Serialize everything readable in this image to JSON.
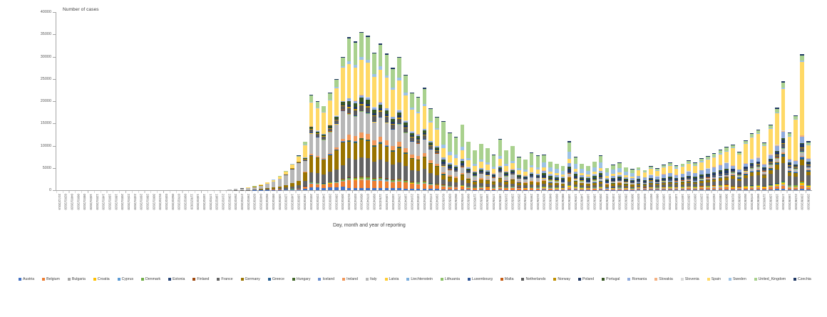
{
  "page": {
    "background": "#ffffff"
  },
  "chart_data": {
    "type": "bar",
    "variant": "stacked",
    "title": "Number of cases",
    "xlabel": "Day, month and year of reporting",
    "ylabel": "",
    "ylim": [
      0,
      40000
    ],
    "ytick_step": 5000,
    "ytick_labels": [
      "0",
      "5000",
      "10000",
      "15000",
      "20000",
      "25000",
      "30000",
      "35000",
      "40000"
    ],
    "grid": false,
    "legend_position": "bottom",
    "axis_color": "#a6a6a6",
    "tick_text_color": "#595959",
    "dates": [
      "31/12/2019",
      "02/01/2020",
      "04/01/2020",
      "06/01/2020",
      "08/01/2020",
      "10/01/2020",
      "12/01/2020",
      "14/01/2020",
      "16/01/2020",
      "18/01/2020",
      "20/01/2020",
      "22/01/2020",
      "24/01/2020",
      "26/01/2020",
      "28/01/2020",
      "30/01/2020",
      "01/02/2020",
      "03/02/2020",
      "05/02/2020",
      "07/02/2020",
      "09/02/2020",
      "11/02/2020",
      "13/02/2020",
      "15/02/2020",
      "17/02/2020",
      "19/02/2020",
      "21/02/2020",
      "23/02/2020",
      "25/02/2020",
      "27/02/2020",
      "29/02/2020",
      "02/03/2020",
      "04/03/2020",
      "06/03/2020",
      "08/03/2020",
      "10/03/2020",
      "12/03/2020",
      "14/03/2020",
      "16/03/2020",
      "18/03/2020",
      "20/03/2020",
      "22/03/2020",
      "24/03/2020",
      "26/03/2020",
      "28/03/2020",
      "30/03/2020",
      "01/04/2020",
      "03/04/2020",
      "05/04/2020",
      "07/04/2020",
      "09/04/2020",
      "11/04/2020",
      "13/04/2020",
      "15/04/2020",
      "17/04/2020",
      "19/04/2020",
      "21/04/2020",
      "23/04/2020",
      "25/04/2020",
      "27/04/2020",
      "29/04/2020",
      "01/05/2020",
      "03/05/2020",
      "05/05/2020",
      "07/05/2020",
      "09/05/2020",
      "11/05/2020",
      "13/05/2020",
      "15/05/2020",
      "17/05/2020",
      "19/05/2020",
      "21/05/2020",
      "23/05/2020",
      "25/05/2020",
      "27/05/2020",
      "29/05/2020",
      "31/05/2020",
      "02/06/2020",
      "04/06/2020",
      "06/06/2020",
      "08/06/2020",
      "10/06/2020",
      "12/06/2020",
      "14/06/2020",
      "16/06/2020",
      "18/06/2020",
      "20/06/2020",
      "22/06/2020",
      "24/06/2020",
      "26/06/2020",
      "28/06/2020",
      "30/06/2020",
      "02/07/2020",
      "04/07/2020",
      "06/07/2020",
      "08/07/2020",
      "10/07/2020",
      "12/07/2020",
      "14/07/2020",
      "16/07/2020",
      "18/07/2020",
      "20/07/2020",
      "22/07/2020",
      "24/07/2020",
      "26/07/2020",
      "28/07/2020",
      "30/07/2020",
      "01/08/2020",
      "03/08/2020",
      "05/08/2020",
      "07/08/2020",
      "09/08/2020",
      "11/08/2020",
      "13/08/2020",
      "15/08/2020",
      "17/08/2020",
      "19/08/2020",
      "21/08/2020",
      "23/08/2020",
      "25/08/2020"
    ],
    "totals": [
      0,
      0,
      0,
      0,
      0,
      0,
      0,
      0,
      0,
      0,
      0,
      0,
      0,
      0,
      0,
      0,
      0,
      0,
      0,
      0,
      0,
      0,
      0,
      0,
      20,
      30,
      60,
      150,
      300,
      450,
      600,
      900,
      1300,
      1800,
      2400,
      3200,
      4300,
      6000,
      7800,
      11000,
      21500,
      20000,
      19000,
      22000,
      25000,
      30000,
      34400,
      33500,
      35600,
      34800,
      31000,
      33000,
      30700,
      27500,
      30000,
      26000,
      22000,
      21000,
      23000,
      18500,
      16500,
      15500,
      13000,
      12000,
      14800,
      11000,
      9000,
      10500,
      9500,
      8000,
      11500,
      9000,
      10000,
      7500,
      7000,
      8500,
      7800,
      8000,
      6500,
      6000,
      5500,
      11000,
      7500,
      6000,
      5500,
      6500,
      7800,
      5000,
      5800,
      6200,
      5200,
      4800,
      5200,
      4600,
      5500,
      5000,
      5800,
      6200,
      5600,
      6000,
      6800,
      6200,
      7200,
      7800,
      8400,
      9200,
      9800,
      10200,
      8600,
      11200,
      12800,
      13600,
      10800,
      14800,
      18600,
      24500,
      13000,
      16800,
      30600,
      11000
    ],
    "countries": [
      {
        "name": "Austria",
        "color": "#4472C4"
      },
      {
        "name": "Belgium",
        "color": "#ED7D31"
      },
      {
        "name": "Bulgaria",
        "color": "#A5A5A5"
      },
      {
        "name": "Croatia",
        "color": "#FFC000"
      },
      {
        "name": "Cyprus",
        "color": "#5B9BD5"
      },
      {
        "name": "Denmark",
        "color": "#70AD47"
      },
      {
        "name": "Estonia",
        "color": "#264478"
      },
      {
        "name": "Finland",
        "color": "#9E480E"
      },
      {
        "name": "France",
        "color": "#636363"
      },
      {
        "name": "Germany",
        "color": "#997300"
      },
      {
        "name": "Greece",
        "color": "#255E91"
      },
      {
        "name": "Hungary",
        "color": "#43682B"
      },
      {
        "name": "Iceland",
        "color": "#698ED0"
      },
      {
        "name": "Ireland",
        "color": "#F1975A"
      },
      {
        "name": "Italy",
        "color": "#B7B7B7"
      },
      {
        "name": "Latvia",
        "color": "#FFCD33"
      },
      {
        "name": "Liechtenstein",
        "color": "#7CAFDD"
      },
      {
        "name": "Lithuania",
        "color": "#8CC168"
      },
      {
        "name": "Luxembourg",
        "color": "#2F5597"
      },
      {
        "name": "Malta",
        "color": "#C55A11"
      },
      {
        "name": "Netherlands",
        "color": "#5A5A5A"
      },
      {
        "name": "Norway",
        "color": "#BF8F00"
      },
      {
        "name": "Poland",
        "color": "#203864"
      },
      {
        "name": "Portugal",
        "color": "#375623"
      },
      {
        "name": "Romania",
        "color": "#8FAADC"
      },
      {
        "name": "Slovakia",
        "color": "#F4B183"
      },
      {
        "name": "Slovenia",
        "color": "#D9D9D9"
      },
      {
        "name": "Spain",
        "color": "#FFD966"
      },
      {
        "name": "Sweden",
        "color": "#9DC3E6"
      },
      {
        "name": "United_Kingdom",
        "color": "#A9D18E"
      },
      {
        "name": "Czechia",
        "color": "#1F3864"
      }
    ],
    "composition_phases": [
      {
        "from": 0,
        "to": 23,
        "weights": {
          "France": 50,
          "Germany": 20,
          "Italy": 15,
          "Spain": 5,
          "Sweden": 5,
          "United_Kingdom": 5
        }
      },
      {
        "from": 24,
        "to": 30,
        "weights": {
          "Italy": 78,
          "France": 6,
          "Germany": 5,
          "Spain": 4,
          "Austria": 1,
          "Sweden": 1,
          "United_Kingdom": 2,
          "Netherlands": 1,
          "Norway": 1,
          "Denmark": 1
        }
      },
      {
        "from": 31,
        "to": 38,
        "weights": {
          "Italy": 52,
          "Spain": 14,
          "Germany": 12,
          "France": 10,
          "Austria": 2,
          "Netherlands": 2,
          "United_Kingdom": 2,
          "Belgium": 1.5,
          "Norway": 1.5,
          "Sweden": 1,
          "Denmark": 1,
          "Czechia": 0.5,
          "Portugal": 0.5
        }
      },
      {
        "from": 39,
        "to": 45,
        "weights": {
          "Spain": 26,
          "Italy": 22,
          "Germany": 18,
          "France": 11,
          "United_Kingdom": 7,
          "Belgium": 4,
          "Austria": 3,
          "Netherlands": 3,
          "Portugal": 2,
          "Ireland": 1.5,
          "Sweden": 1,
          "Denmark": 0.8,
          "Norway": 0.8,
          "Czechia": 0.6,
          "Poland": 0.5,
          "Romania": 0.5,
          "Luxembourg": 0.5,
          "Greece": 0.3,
          "Finland": 0.3,
          "Iceland": 0.3,
          "Estonia": 0.2,
          "Croatia": 0.2,
          "Hungary": 0.2,
          "Bulgaria": 0.2,
          "Slovenia": 0.2,
          "Slovakia": 0.2,
          "Lithuania": 0.2,
          "Latvia": 0.1,
          "Malta": 0.1,
          "Cyprus": 0.1,
          "Liechtenstein": 0.05
        }
      },
      {
        "from": 46,
        "to": 60,
        "weights": {
          "Spain": 22,
          "United_Kingdom": 15,
          "Italy": 13,
          "France": 12,
          "Germany": 11,
          "Belgium": 5,
          "Ireland": 3.5,
          "Netherlands": 3.5,
          "Portugal": 2.5,
          "Sweden": 2,
          "Austria": 1.5,
          "Poland": 1.5,
          "Romania": 1.5,
          "Denmark": 1,
          "Czechia": 0.8,
          "Norway": 0.8,
          "Finland": 0.5,
          "Hungary": 0.5,
          "Greece": 0.4,
          "Luxembourg": 0.3,
          "Bulgaria": 0.3,
          "Lithuania": 0.3,
          "Estonia": 0.2,
          "Croatia": 0.2,
          "Slovenia": 0.2,
          "Slovakia": 0.2,
          "Iceland": 0.2,
          "Latvia": 0.1,
          "Malta": 0.1,
          "Cyprus": 0.1,
          "Liechtenstein": 0.05
        }
      },
      {
        "from": 61,
        "to": 76,
        "weights": {
          "United_Kingdom": 32,
          "Spain": 13,
          "Italy": 9,
          "Germany": 7,
          "France": 7,
          "Sweden": 5.5,
          "Belgium": 4,
          "Poland": 3.5,
          "Romania": 3,
          "Netherlands": 2.5,
          "Portugal": 2.5,
          "Ireland": 2,
          "Denmark": 1.2,
          "Bulgaria": 0.8,
          "Austria": 0.8,
          "Hungary": 0.8,
          "Czechia": 0.8,
          "Finland": 0.6,
          "Greece": 0.3,
          "Croatia": 0.3,
          "Norway": 0.3,
          "Lithuania": 0.3,
          "Slovakia": 0.2,
          "Estonia": 0.1,
          "Slovenia": 0.1,
          "Latvia": 0.1,
          "Luxembourg": 0.1,
          "Malta": 0.1,
          "Cyprus": 0.05,
          "Iceland": 0.05,
          "Liechtenstein": 0.02
        }
      },
      {
        "from": 77,
        "to": 91,
        "weights": {
          "United_Kingdom": 18,
          "Sweden": 14,
          "Spain": 8,
          "Germany": 7.5,
          "France": 7,
          "Poland": 6.5,
          "Romania": 6.5,
          "Italy": 5,
          "Portugal": 5,
          "Belgium": 2.5,
          "Bulgaria": 2.5,
          "Czechia": 1.5,
          "Netherlands": 1.5,
          "Denmark": 1.5,
          "Croatia": 1.5,
          "Austria": 1.2,
          "Hungary": 0.8,
          "Ireland": 0.8,
          "Greece": 0.5,
          "Luxembourg": 0.5,
          "Norway": 0.4,
          "Slovakia": 0.4,
          "Lithuania": 0.4,
          "Finland": 0.4,
          "Slovenia": 0.3,
          "Latvia": 0.2,
          "Estonia": 0.1,
          "Malta": 0.1,
          "Cyprus": 0.05,
          "Iceland": 0.05,
          "Liechtenstein": 0.02
        }
      },
      {
        "from": 92,
        "to": 106,
        "weights": {
          "Spain": 24,
          "Romania": 13,
          "France": 10,
          "United_Kingdom": 7,
          "Germany": 6,
          "Poland": 5.5,
          "Belgium": 4,
          "Bulgaria": 3,
          "Netherlands": 3,
          "Portugal": 3,
          "Sweden": 3,
          "Italy": 2.5,
          "Czechia": 2,
          "Croatia": 2,
          "Austria": 1.8,
          "Greece": 1.8,
          "Denmark": 1,
          "Luxembourg": 1,
          "Ireland": 0.8,
          "Slovakia": 0.7,
          "Slovenia": 0.5,
          "Hungary": 0.4,
          "Norway": 0.4,
          "Finland": 0.3,
          "Lithuania": 0.3,
          "Malta": 0.3,
          "Estonia": 0.1,
          "Latvia": 0.1,
          "Cyprus": 0.1,
          "Iceland": 0.1,
          "Liechtenstein": 0.02
        }
      },
      {
        "from": 107,
        "to": 116,
        "weights": {
          "Spain": 38,
          "France": 16,
          "Germany": 6,
          "Romania": 6,
          "United_Kingdom": 4.5,
          "Italy": 3.5,
          "Poland": 3.5,
          "Netherlands": 3,
          "Belgium": 2.5,
          "Greece": 2,
          "Croatia": 1.8,
          "Czechia": 1.5,
          "Austria": 1.5,
          "Denmark": 1.2,
          "Sweden": 1.2,
          "Ireland": 1,
          "Portugal": 1,
          "Bulgaria": 1,
          "Norway": 0.8,
          "Slovakia": 0.8,
          "Finland": 0.5,
          "Hungary": 0.5,
          "Slovenia": 0.5,
          "Lithuania": 0.5,
          "Luxembourg": 0.5,
          "Malta": 0.3,
          "Estonia": 0.3,
          "Latvia": 0.2,
          "Iceland": 0.2,
          "Cyprus": 0.1,
          "Liechtenstein": 0.05
        }
      },
      {
        "from": 117,
        "to": 118,
        "weights": {
          "Spain": 55,
          "France": 12,
          "Romania": 5,
          "Germany": 4,
          "United_Kingdom": 3.5,
          "Italy": 2.5,
          "Poland": 2.5,
          "Netherlands": 2,
          "Belgium": 2,
          "Greece": 1.5,
          "Croatia": 1.5,
          "Czechia": 1.2,
          "Austria": 1,
          "Denmark": 1,
          "Sweden": 1,
          "Ireland": 0.8,
          "Portugal": 0.8,
          "Bulgaria": 0.8,
          "Norway": 0.6,
          "Slovakia": 0.6,
          "Finland": 0.4,
          "Hungary": 0.4,
          "Slovenia": 0.4,
          "Lithuania": 0.4,
          "Luxembourg": 0.4,
          "Malta": 0.2,
          "Estonia": 0.2,
          "Latvia": 0.15,
          "Iceland": 0.15,
          "Cyprus": 0.1,
          "Liechtenstein": 0.05
        }
      },
      {
        "from": 119,
        "to": 119,
        "weights": {
          "Spain": 25,
          "France": 20,
          "Germany": 7,
          "Romania": 7,
          "United_Kingdom": 5,
          "Italy": 4,
          "Poland": 4,
          "Netherlands": 3.5,
          "Belgium": 3,
          "Greece": 2.5,
          "Croatia": 2,
          "Czechia": 2,
          "Austria": 2,
          "Denmark": 1.5,
          "Sweden": 1.5,
          "Ireland": 1.2,
          "Portugal": 1.2,
          "Bulgaria": 1.2,
          "Norway": 1,
          "Slovakia": 1,
          "Finland": 0.6,
          "Hungary": 0.6,
          "Slovenia": 0.6,
          "Lithuania": 0.6,
          "Luxembourg": 0.6,
          "Malta": 0.3,
          "Estonia": 0.3,
          "Latvia": 0.2,
          "Iceland": 0.2,
          "Cyprus": 0.1,
          "Liechtenstein": 0.05
        }
      }
    ]
  }
}
